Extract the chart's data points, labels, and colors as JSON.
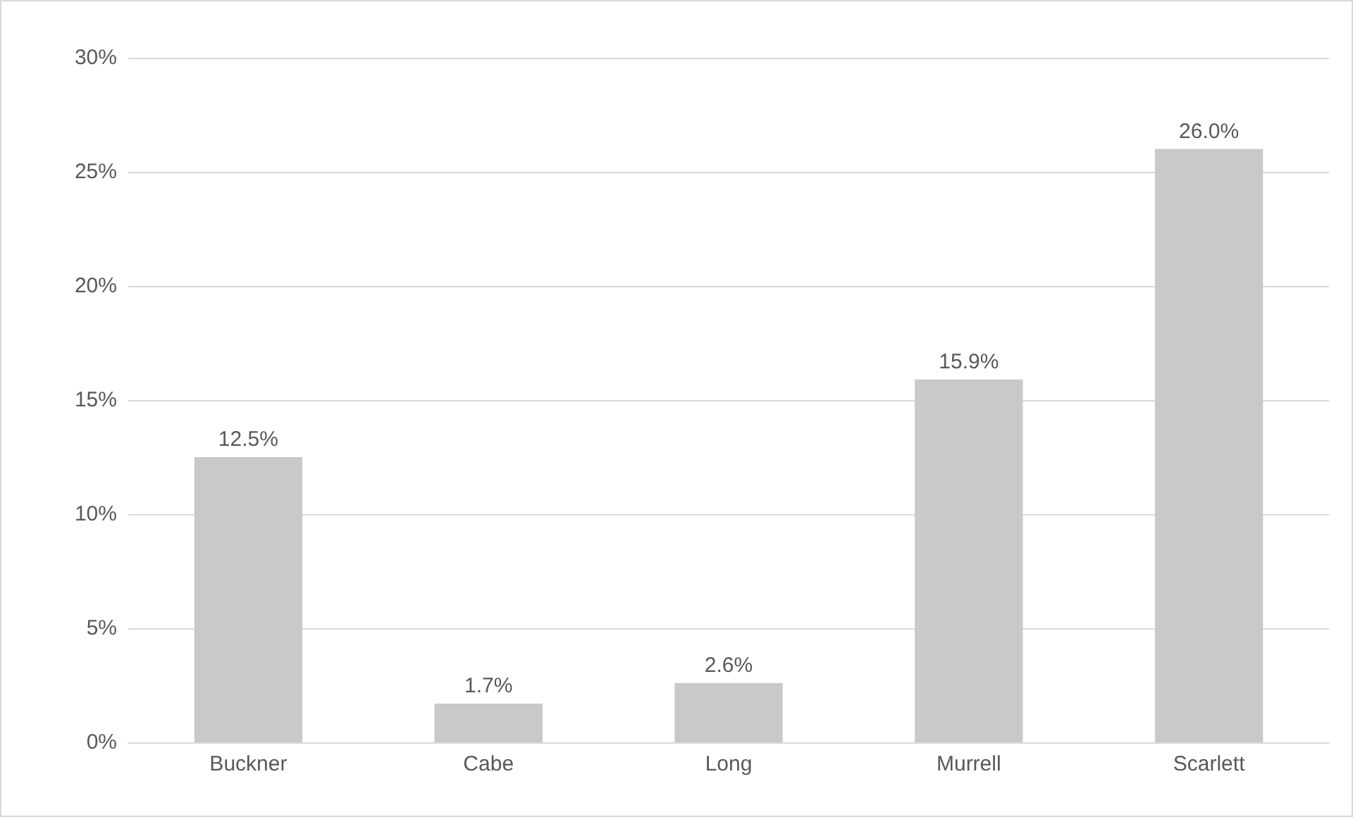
{
  "chart_data": {
    "type": "bar",
    "categories": [
      "Buckner",
      "Cabe",
      "Long",
      "Murrell",
      "Scarlett"
    ],
    "values": [
      12.5,
      1.7,
      2.6,
      15.9,
      26.0
    ],
    "value_labels": [
      "12.5%",
      "1.7%",
      "2.6%",
      "15.9%",
      "26.0%"
    ],
    "color": "#c9c9c9",
    "ylim": [
      0,
      30
    ],
    "yticks": [
      {
        "value": 0,
        "label": "0%"
      },
      {
        "value": 5,
        "label": "5%"
      },
      {
        "value": 10,
        "label": "10%"
      },
      {
        "value": 15,
        "label": "15%"
      },
      {
        "value": 20,
        "label": "20%"
      },
      {
        "value": 25,
        "label": "25%"
      },
      {
        "value": 30,
        "label": "30%"
      }
    ],
    "grid": "y"
  }
}
